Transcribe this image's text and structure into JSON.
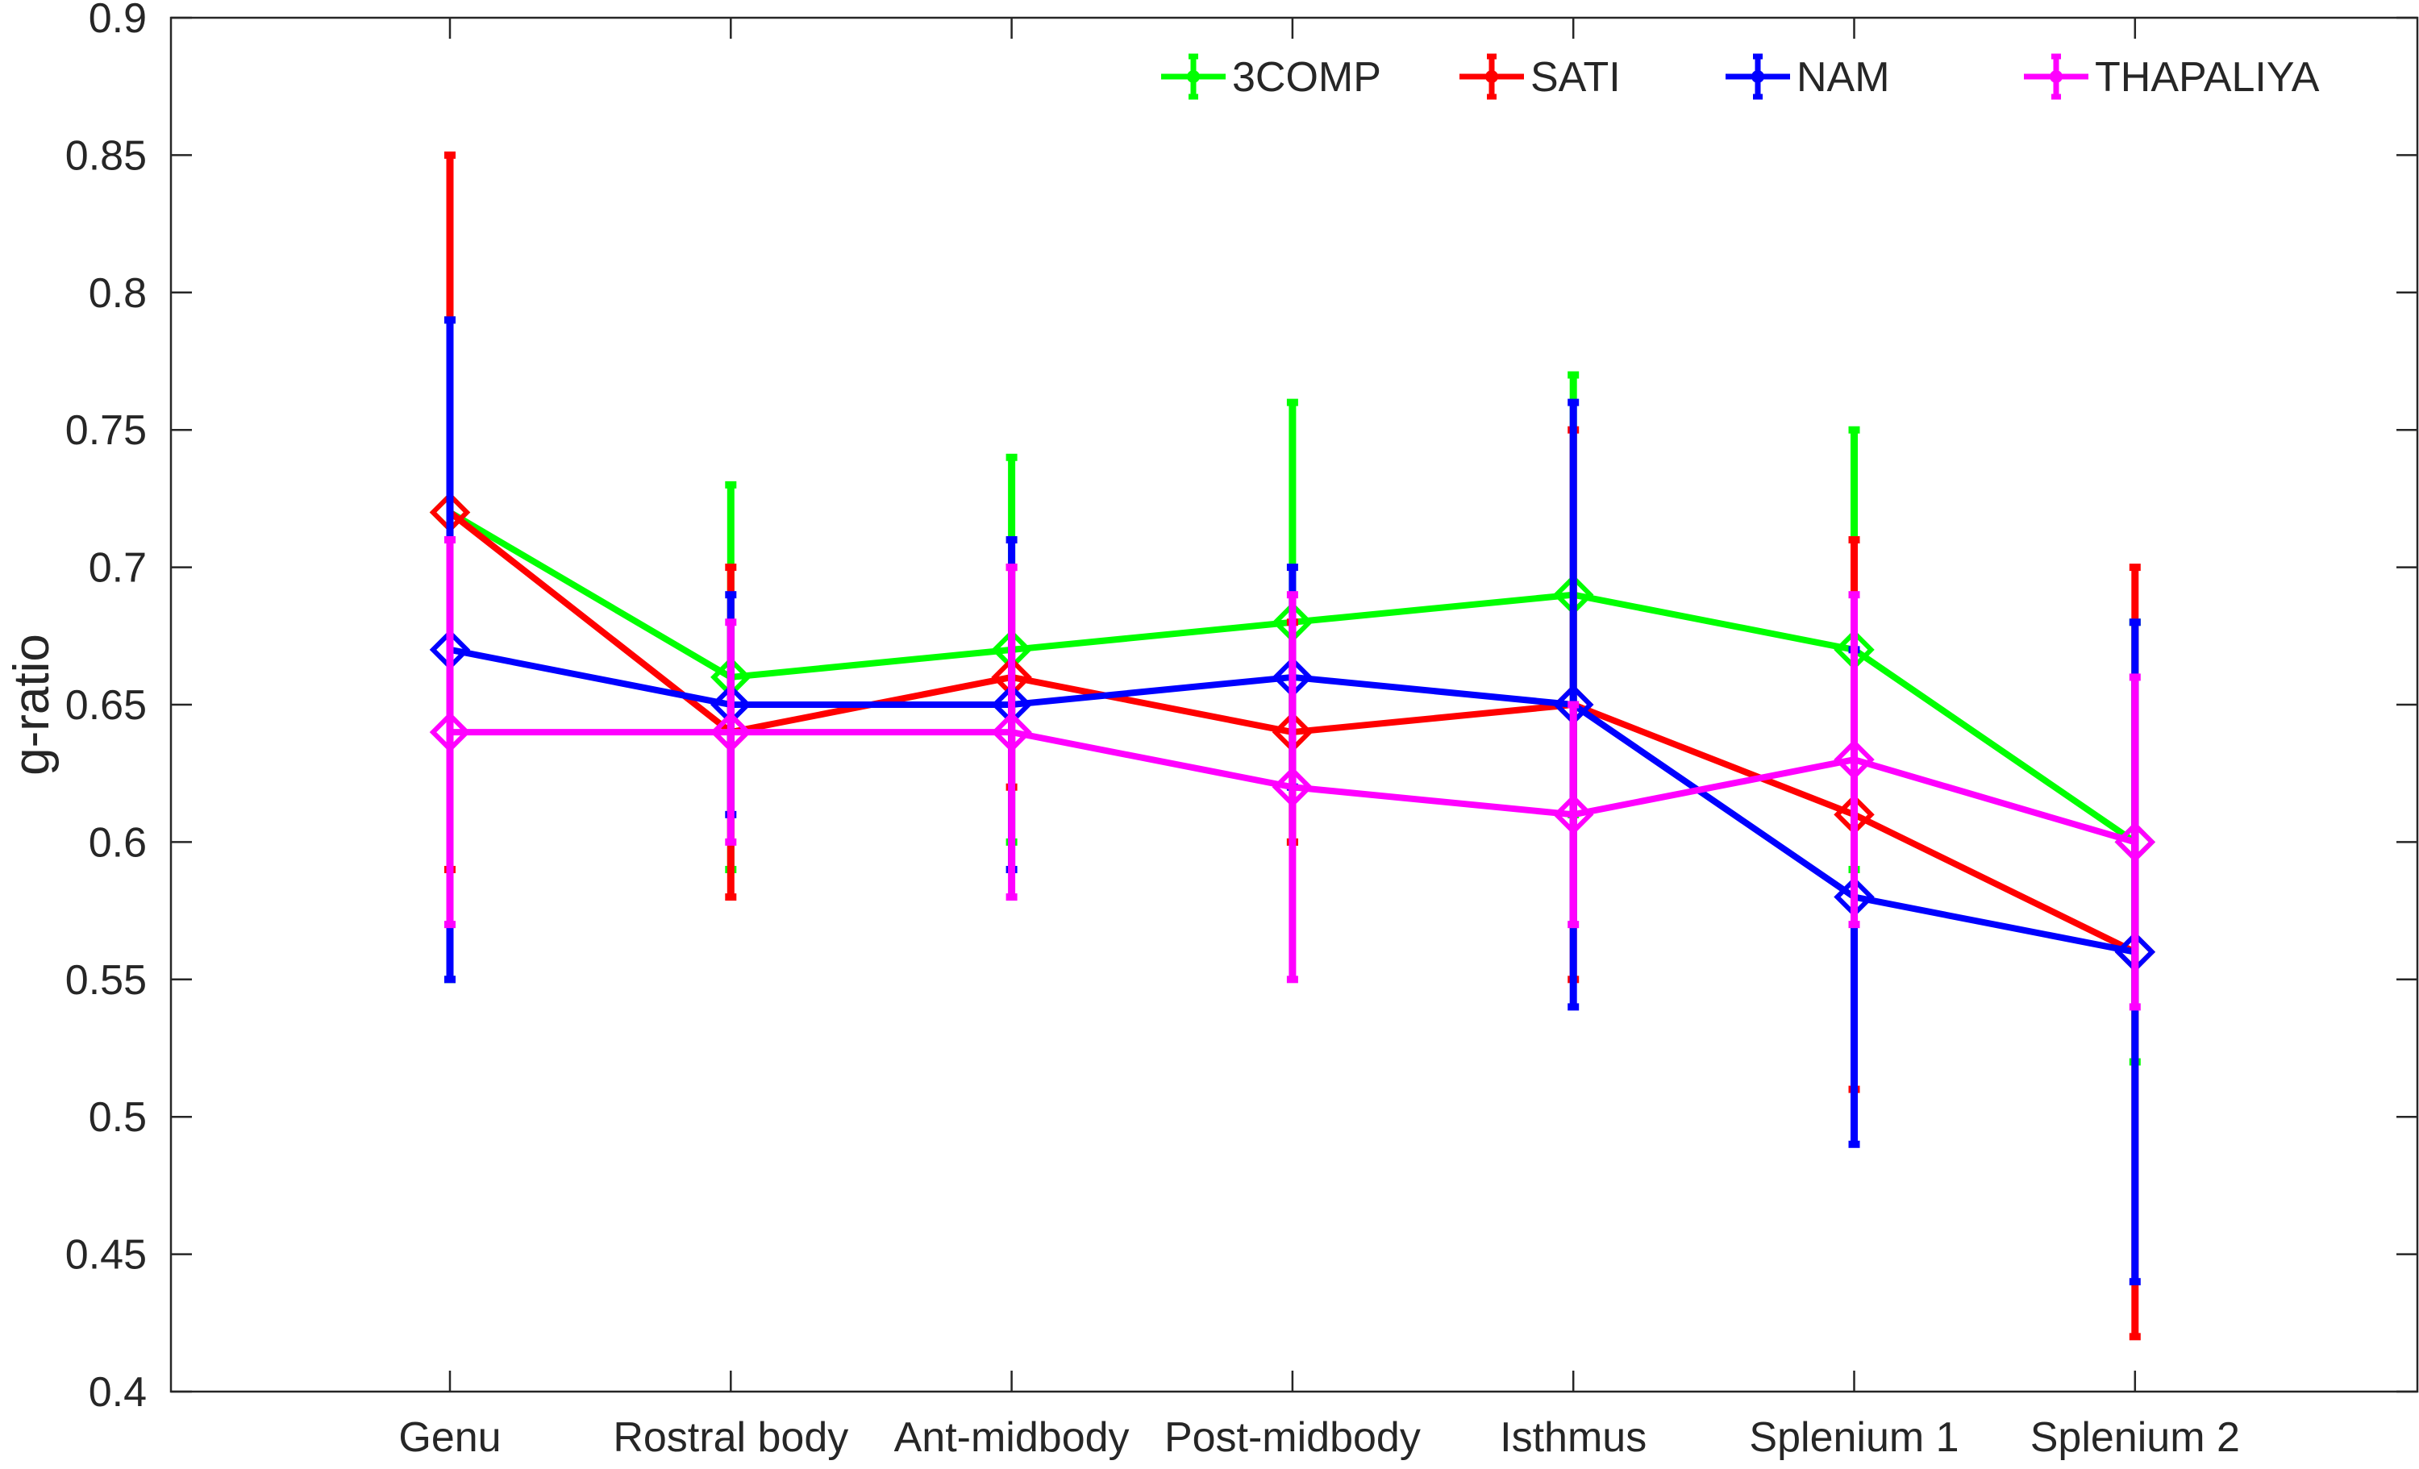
{
  "chart_data": {
    "type": "line",
    "title": "",
    "xlabel": "",
    "ylabel": "g-ratio",
    "ylim": [
      0.4,
      0.9
    ],
    "yticks": [
      "0.4",
      "0.45",
      "0.5",
      "0.55",
      "0.6",
      "0.65",
      "0.7",
      "0.75",
      "0.8",
      "0.85",
      "0.9"
    ],
    "categories": [
      "Genu",
      "Rostral body",
      "Ant-midbody",
      "Post-midbody",
      "Isthmus",
      "Splenium 1",
      "Splenium 2"
    ],
    "grid": false,
    "marker": "diamond",
    "legend_position": "top-right",
    "series": [
      {
        "name": "3COMP",
        "color": "#00ff00",
        "values": [
          0.72,
          0.66,
          0.67,
          0.68,
          0.69,
          0.67,
          0.6
        ],
        "error_low": [
          0.55,
          0.59,
          0.6,
          0.6,
          0.61,
          0.59,
          0.52
        ],
        "error_high": [
          0.79,
          0.73,
          0.74,
          0.76,
          0.77,
          0.75,
          0.68
        ]
      },
      {
        "name": "SATI",
        "color": "#ff0000",
        "values": [
          0.72,
          0.64,
          0.66,
          0.64,
          0.65,
          0.61,
          0.56
        ],
        "error_low": [
          0.59,
          0.58,
          0.62,
          0.6,
          0.55,
          0.51,
          0.42
        ],
        "error_high": [
          0.85,
          0.7,
          0.7,
          0.68,
          0.75,
          0.71,
          0.7
        ]
      },
      {
        "name": "NAM",
        "color": "#0000ff",
        "values": [
          0.67,
          0.65,
          0.65,
          0.66,
          0.65,
          0.58,
          0.56
        ],
        "error_low": [
          0.55,
          0.61,
          0.59,
          0.62,
          0.54,
          0.49,
          0.44
        ],
        "error_high": [
          0.79,
          0.69,
          0.71,
          0.7,
          0.76,
          0.67,
          0.68
        ]
      },
      {
        "name": "THAPALIYA",
        "color": "#ff00ff",
        "values": [
          0.64,
          0.64,
          0.64,
          0.62,
          0.61,
          0.63,
          0.6
        ],
        "error_low": [
          0.57,
          0.6,
          0.58,
          0.55,
          0.57,
          0.57,
          0.54
        ],
        "error_high": [
          0.71,
          0.68,
          0.7,
          0.69,
          0.65,
          0.69,
          0.66
        ]
      }
    ]
  }
}
